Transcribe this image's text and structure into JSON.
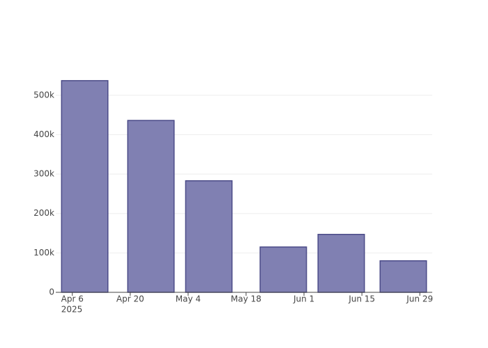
{
  "chart_data": {
    "type": "bar",
    "x": [
      "2025-04-09",
      "2025-04-25",
      "2025-05-09",
      "2025-05-27",
      "2025-06-10",
      "2025-06-25"
    ],
    "values": [
      537000,
      436000,
      283000,
      115000,
      147000,
      80000
    ],
    "color": "#8080b2",
    "edge_color": "#4b4b88",
    "bar_width_days": 11.2,
    "xlim": [
      "2025-04-02",
      "2025-07-02"
    ],
    "xticks": [
      {
        "value": "2025-04-06",
        "label": "Apr 6"
      },
      {
        "value": "2025-04-20",
        "label": "Apr 20"
      },
      {
        "value": "2025-05-04",
        "label": "May 4"
      },
      {
        "value": "2025-05-18",
        "label": "May 18"
      },
      {
        "value": "2025-06-01",
        "label": "Jun 1"
      },
      {
        "value": "2025-06-15",
        "label": "Jun 15"
      },
      {
        "value": "2025-06-29",
        "label": "Jun 29"
      }
    ],
    "x_year_label": "2025",
    "ylim": [
      0,
      565000
    ],
    "yticks": [
      0,
      {
        "value": 100000,
        "label": "100k"
      },
      {
        "value": 200000,
        "label": "200k"
      },
      {
        "value": 300000,
        "label": "300k"
      },
      {
        "value": 400000,
        "label": "400k"
      },
      {
        "value": 500000,
        "label": "500k"
      }
    ],
    "grid": true
  }
}
